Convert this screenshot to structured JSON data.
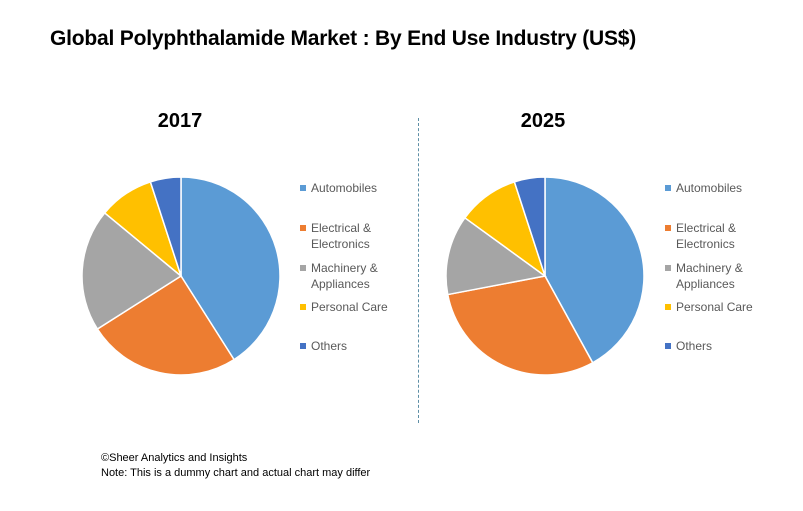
{
  "title": "Global Polyphthalamide Market : By End Use Industry (US$)",
  "legend_labels": [
    {
      "line1": "Automobiles",
      "line2": ""
    },
    {
      "line1": "Electrical &",
      "line2": "Electronics"
    },
    {
      "line1": "Machinery &",
      "line2": "Appliances"
    },
    {
      "line1": "Personal Care",
      "line2": ""
    },
    {
      "line1": "Others",
      "line2": ""
    }
  ],
  "colors": [
    "#5b9bd5",
    "#ed7d31",
    "#a5a5a5",
    "#ffc000",
    "#4472c4"
  ],
  "chart_data": [
    {
      "type": "pie",
      "title": "2017",
      "categories": [
        "Automobiles",
        "Electrical & Electronics",
        "Machinery & Appliances",
        "Personal Care",
        "Others"
      ],
      "values": [
        41,
        25,
        20,
        9,
        5
      ],
      "legend_position": "right"
    },
    {
      "type": "pie",
      "title": "2025",
      "categories": [
        "Automobiles",
        "Electrical & Electronics",
        "Machinery & Appliances",
        "Personal Care",
        "Others"
      ],
      "values": [
        42,
        30,
        13,
        10,
        5
      ],
      "legend_position": "right"
    }
  ],
  "footer": {
    "source": "©Sheer Analytics and Insights",
    "note": "Note: This is a dummy chart and actual chart may differ"
  }
}
